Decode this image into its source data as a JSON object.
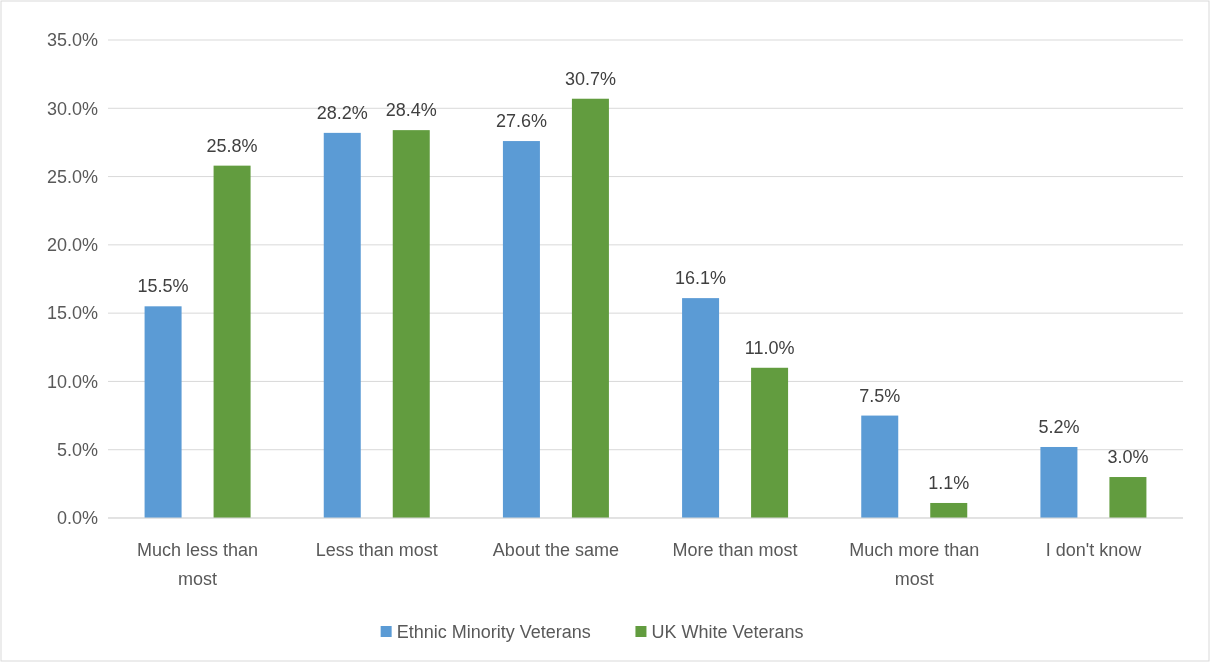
{
  "chart_data": {
    "type": "bar",
    "categories": [
      "Much less than most",
      "Less than most",
      "About the same",
      "More than most",
      "Much more than most",
      "I don't know"
    ],
    "series": [
      {
        "name": "Ethnic Minority Veterans",
        "color": "#5b9bd5",
        "values": [
          15.5,
          28.2,
          27.6,
          16.1,
          7.5,
          5.2
        ],
        "value_labels": [
          "15.5%",
          "28.2%",
          "27.6%",
          "16.1%",
          "7.5%",
          "5.2%"
        ]
      },
      {
        "name": "UK White Veterans",
        "color": "#629c3f",
        "values": [
          25.8,
          28.4,
          30.7,
          11.0,
          1.1,
          3.0
        ],
        "value_labels": [
          "25.8%",
          "28.4%",
          "30.7%",
          "11.0%",
          "1.1%",
          "3.0%"
        ]
      }
    ],
    "ylim": [
      0,
      35
    ],
    "yticks": [
      {
        "value": 0,
        "label": "0.0%"
      },
      {
        "value": 5,
        "label": "5.0%"
      },
      {
        "value": 10,
        "label": "10.0%"
      },
      {
        "value": 15,
        "label": "15.0%"
      },
      {
        "value": 20,
        "label": "20.0%"
      },
      {
        "value": 25,
        "label": "25.0%"
      },
      {
        "value": 30,
        "label": "30.0%"
      },
      {
        "value": 35,
        "label": "35.0%"
      }
    ],
    "grid": "y",
    "legend": "bottom"
  }
}
